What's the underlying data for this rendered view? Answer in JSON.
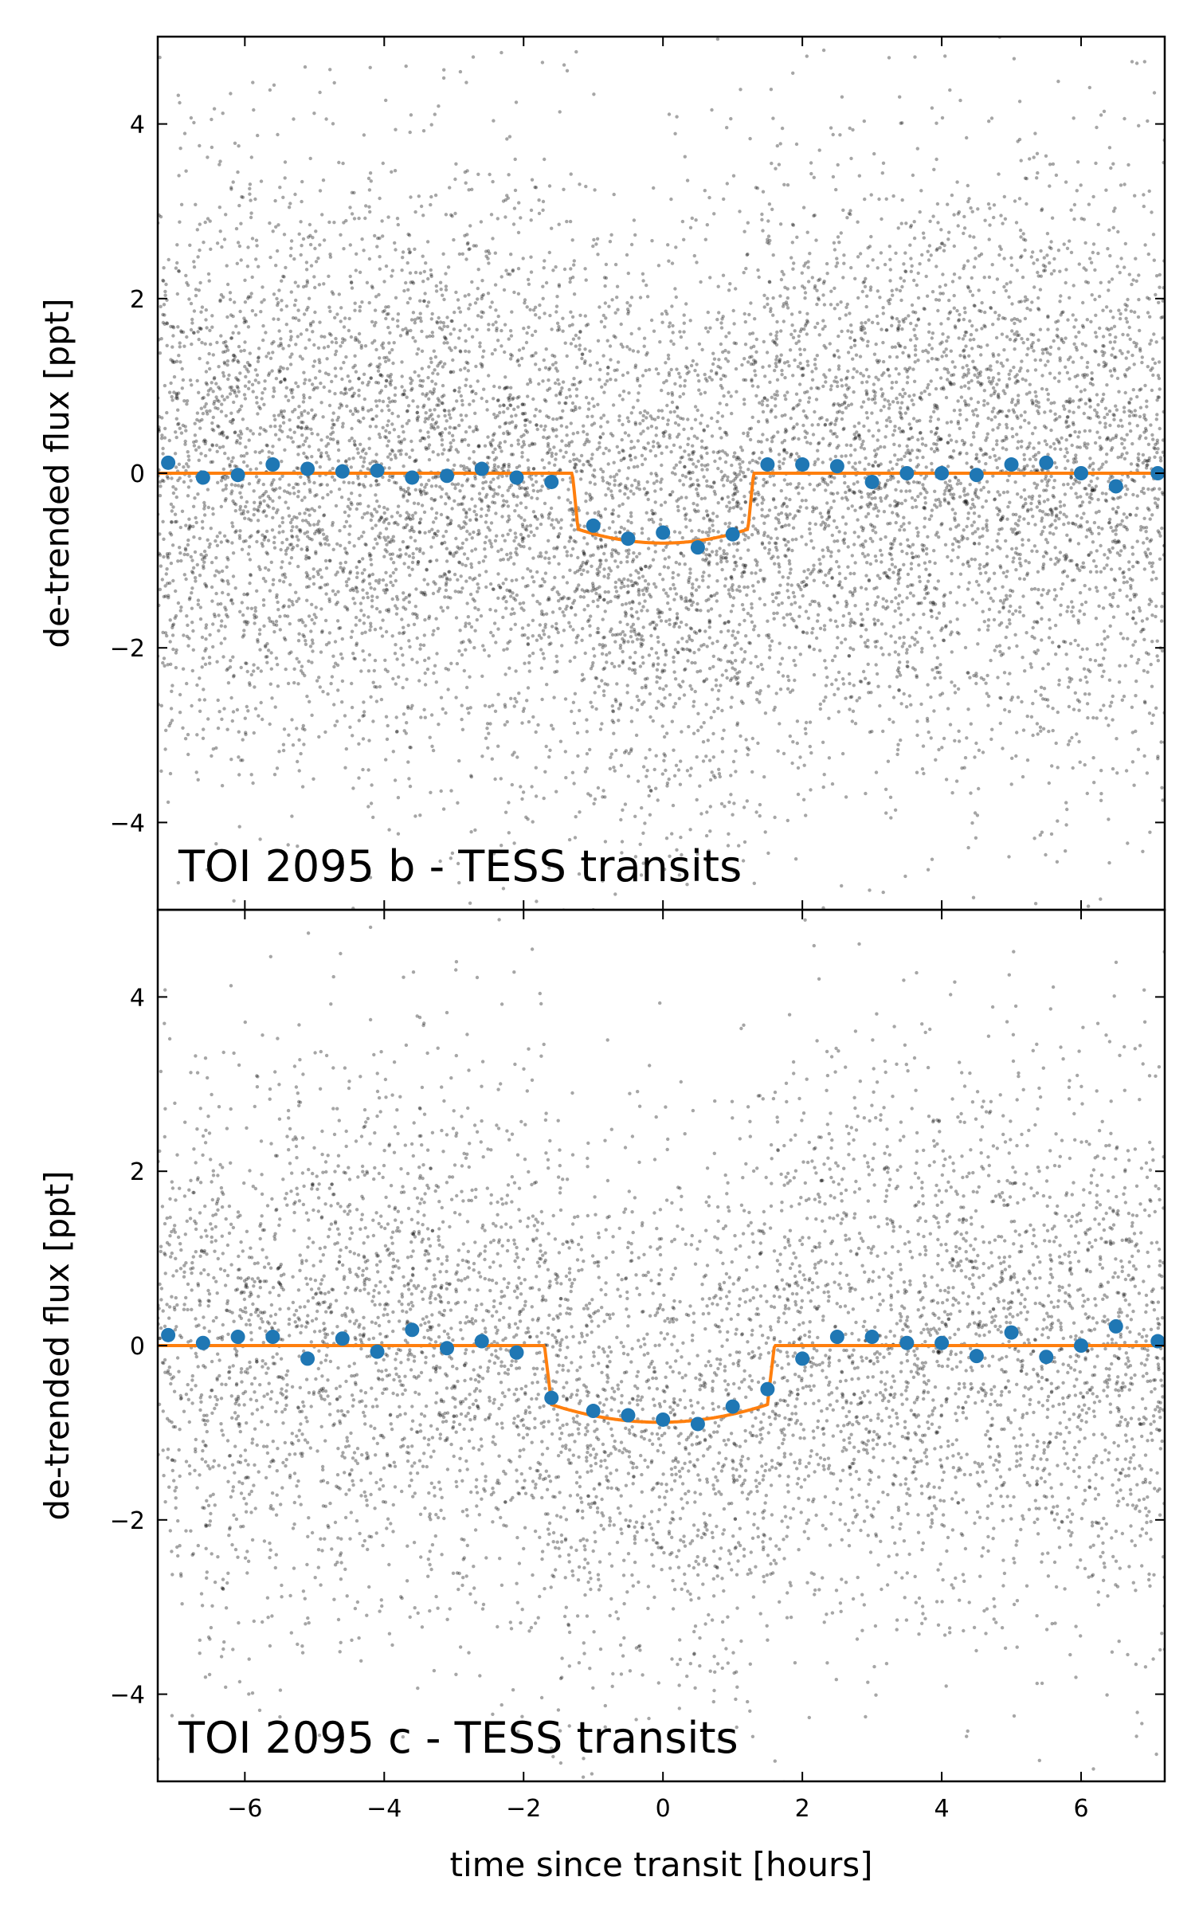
{
  "figure": {
    "xlabel": "time since transit [hours]"
  },
  "chart_data": [
    {
      "type": "scatter",
      "title": "TOI 2095 b - TESS transits",
      "xlabel": "",
      "ylabel": "de-trended flux [ppt]",
      "xlim": [
        -7.25,
        7.2
      ],
      "ylim": [
        -5.0,
        5.0
      ],
      "xticks": [
        -6,
        -4,
        -2,
        0,
        2,
        4,
        6
      ],
      "xtick_labels": [
        "",
        "",
        "",
        "",
        "",
        "",
        ""
      ],
      "yticks": [
        -4,
        -2,
        0,
        2,
        4
      ],
      "ytick_labels": [
        "−4",
        "−2",
        "0",
        "2",
        "4"
      ],
      "grid": false,
      "colors": {
        "raw": "#000000",
        "binned": "#1f77b4",
        "model": "#ff7f0e"
      },
      "model": {
        "name": "transit model",
        "t_ingress": -1.3,
        "t_egress": 1.3,
        "depth_center": -0.8,
        "depth_edge": -0.62,
        "ingress_duration": 0.08
      },
      "raw_data": {
        "n_points": 9000,
        "scatter_ppt": 1.7
      },
      "binned": {
        "x": [
          -7.1,
          -6.6,
          -6.1,
          -5.6,
          -5.1,
          -4.6,
          -4.1,
          -3.6,
          -3.1,
          -2.6,
          -2.1,
          -1.6,
          -1.0,
          -0.5,
          0.0,
          0.5,
          1.0,
          1.5,
          2.0,
          2.5,
          3.0,
          3.5,
          4.0,
          4.5,
          5.0,
          5.5,
          6.0,
          6.5,
          7.1
        ],
        "y": [
          0.12,
          -0.05,
          -0.02,
          0.1,
          0.05,
          0.02,
          0.03,
          -0.05,
          -0.03,
          0.05,
          -0.05,
          -0.1,
          -0.6,
          -0.75,
          -0.68,
          -0.85,
          -0.7,
          0.1,
          0.1,
          0.08,
          -0.1,
          0.0,
          0.0,
          -0.02,
          0.1,
          0.12,
          0.0,
          -0.15,
          0.0
        ]
      }
    },
    {
      "type": "scatter",
      "title": "TOI 2095 c - TESS transits",
      "xlabel": "time since transit [hours]",
      "ylabel": "de-trended flux [ppt]",
      "xlim": [
        -7.25,
        7.2
      ],
      "ylim": [
        -5.0,
        5.0
      ],
      "xticks": [
        -6,
        -4,
        -2,
        0,
        2,
        4,
        6
      ],
      "xtick_labels": [
        "−6",
        "−4",
        "−2",
        "0",
        "2",
        "4",
        "6"
      ],
      "yticks": [
        -4,
        -2,
        0,
        2,
        4
      ],
      "ytick_labels": [
        "−4",
        "−2",
        "0",
        "2",
        "4"
      ],
      "grid": false,
      "colors": {
        "raw": "#000000",
        "binned": "#1f77b4",
        "model": "#ff7f0e"
      },
      "model": {
        "name": "transit model",
        "t_ingress": -1.7,
        "t_egress": 1.6,
        "depth_center": -0.88,
        "depth_edge": -0.65,
        "ingress_duration": 0.1
      },
      "raw_data": {
        "n_points": 6000,
        "scatter_ppt": 1.6
      },
      "binned": {
        "x": [
          -7.1,
          -6.6,
          -6.1,
          -5.6,
          -5.1,
          -4.6,
          -4.1,
          -3.6,
          -3.1,
          -2.6,
          -2.1,
          -1.6,
          -1.0,
          -0.5,
          0.0,
          0.5,
          1.0,
          1.5,
          2.0,
          2.5,
          3.0,
          3.5,
          4.0,
          4.5,
          5.0,
          5.5,
          6.0,
          6.5,
          7.1
        ],
        "y": [
          0.12,
          0.03,
          0.1,
          0.1,
          -0.15,
          0.08,
          -0.07,
          0.18,
          -0.03,
          0.05,
          -0.08,
          -0.6,
          -0.75,
          -0.8,
          -0.85,
          -0.9,
          -0.7,
          -0.5,
          -0.15,
          0.1,
          0.1,
          0.03,
          0.03,
          -0.12,
          0.15,
          -0.13,
          0.0,
          0.22,
          0.05
        ]
      }
    }
  ]
}
